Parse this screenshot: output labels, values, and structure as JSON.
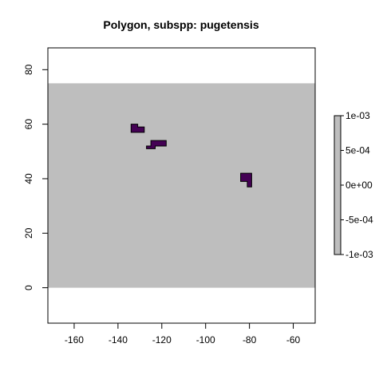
{
  "chart_data": {
    "type": "heatmap",
    "title": "Polygon, subspp: pugetensis",
    "xlabel": "",
    "ylabel": "",
    "xlim": [
      -172,
      -50
    ],
    "ylim": [
      -13,
      88
    ],
    "x_ticks": [
      -160,
      -140,
      -120,
      -100,
      -80,
      -60
    ],
    "x_tick_labels": [
      "-160",
      "-140",
      "-120",
      "-100",
      "-80",
      "-60"
    ],
    "y_ticks": [
      0,
      20,
      40,
      60,
      80
    ],
    "y_tick_labels": [
      "0",
      "20",
      "40",
      "60",
      "80"
    ],
    "raster_extent": {
      "xmin": -172,
      "xmax": -50,
      "ymin": 0,
      "ymax": 75
    },
    "raster_color": "#bebebe",
    "polygon_color": "#440154",
    "polygon_stroke": "#000000",
    "polygons": [
      {
        "name": "polygon-a",
        "points": [
          [
            -134,
            60
          ],
          [
            -131,
            60
          ],
          [
            -131,
            59
          ],
          [
            -128,
            59
          ],
          [
            -128,
            57
          ],
          [
            -134,
            57
          ]
        ]
      },
      {
        "name": "polygon-b",
        "points": [
          [
            -127,
            52
          ],
          [
            -125,
            52
          ],
          [
            -125,
            54
          ],
          [
            -118,
            54
          ],
          [
            -118,
            52
          ],
          [
            -123,
            52
          ],
          [
            -123,
            51
          ],
          [
            -127,
            51
          ]
        ]
      },
      {
        "name": "polygon-c",
        "points": [
          [
            -84,
            42
          ],
          [
            -79,
            42
          ],
          [
            -79,
            37
          ],
          [
            -81,
            37
          ],
          [
            -81,
            39
          ],
          [
            -84,
            39
          ]
        ]
      }
    ],
    "legend": {
      "placement": "right",
      "color": "#bebebe",
      "range": [
        -0.001,
        0.001
      ],
      "ticks": [
        0.001,
        0.0005,
        0,
        -0.0005,
        -0.001
      ],
      "tick_labels": [
        "1e-03",
        "5e-04",
        "0e+00",
        "-5e-04",
        "-1e-03"
      ]
    },
    "grid": false
  }
}
